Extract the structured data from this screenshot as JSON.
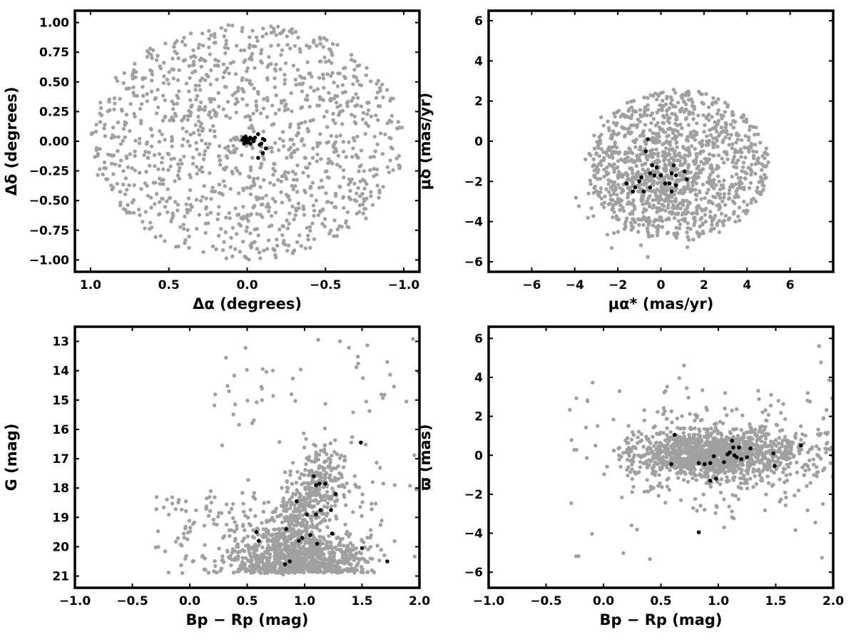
{
  "chart_data": [
    {
      "id": "sky",
      "type": "scatter",
      "xlabel": "Δα (degrees)",
      "ylabel": "Δδ (degrees)",
      "xlim": [
        1.1,
        -1.1
      ],
      "ylim": [
        -1.1,
        1.1
      ],
      "x_reversed": true,
      "xticks": [
        1.0,
        0.5,
        0.0,
        -0.5,
        -1.0
      ],
      "xtick_labels": [
        "1.0",
        "0.5",
        "0.0",
        "−0.5",
        "−1.0"
      ],
      "yticks": [
        -1.0,
        -0.75,
        -0.5,
        -0.25,
        0.0,
        0.25,
        0.5,
        0.75,
        1.0
      ],
      "ytick_labels": [
        "−1.00",
        "−0.75",
        "−0.50",
        "−0.25",
        "0.00",
        "0.25",
        "0.50",
        "0.75",
        "1.00"
      ],
      "background": {
        "color": "#a0a0a0",
        "count": 1200,
        "seed": 11,
        "distribution": "uniform-disk",
        "radius": 1.0,
        "center": [
          0,
          0
        ]
      },
      "members": {
        "color": "#000000",
        "points": [
          [
            0.02,
            0.03
          ],
          [
            0.0,
            0.02
          ],
          [
            -0.02,
            0.03
          ],
          [
            0.01,
            0.0
          ],
          [
            -0.01,
            0.01
          ],
          [
            0.03,
            0.01
          ],
          [
            0.0,
            -0.01
          ],
          [
            -0.03,
            0.02
          ],
          [
            0.02,
            -0.02
          ],
          [
            -0.04,
            0.0
          ],
          [
            0.01,
            0.04
          ],
          [
            -0.02,
            -0.02
          ],
          [
            -0.05,
            0.03
          ],
          [
            -0.07,
            0.06
          ],
          [
            -0.1,
            0.02
          ],
          [
            -0.09,
            -0.02
          ],
          [
            -0.11,
            0.01
          ],
          [
            -0.08,
            -0.03
          ],
          [
            -0.12,
            -0.06
          ],
          [
            -0.07,
            -0.14
          ],
          [
            -0.1,
            -0.1
          ]
        ]
      }
    },
    {
      "id": "pm",
      "type": "scatter",
      "xlabel": "μα* (mas/yr)",
      "ylabel": "μδ (mas/yr)",
      "xlim": [
        -8,
        8
      ],
      "ylim": [
        -6.5,
        6.5
      ],
      "xticks": [
        -6,
        -4,
        -2,
        0,
        2,
        4,
        6
      ],
      "xtick_labels": [
        "−6",
        "−4",
        "−2",
        "0",
        "2",
        "4",
        "6"
      ],
      "yticks": [
        -6,
        -4,
        -2,
        0,
        2,
        4,
        6
      ],
      "ytick_labels": [
        "−6",
        "−4",
        "−2",
        "0",
        "2",
        "4",
        "6"
      ],
      "background": {
        "color": "#a0a0a0",
        "count": 1300,
        "seed": 23,
        "distribution": "ellipse-concentrated",
        "center": [
          0.8,
          -1.2
        ],
        "radius": [
          4.2,
          3.8
        ],
        "core_center": [
          -0.3,
          -1.8
        ],
        "core_sigma": [
          1.3,
          1.3
        ],
        "core_fraction": 0.3
      },
      "members": {
        "color": "#000000",
        "points": [
          [
            -0.6,
            0.1
          ],
          [
            -0.7,
            -0.5
          ],
          [
            -0.4,
            -1.2
          ],
          [
            -0.2,
            -1.3
          ],
          [
            -0.5,
            -1.6
          ],
          [
            -0.3,
            -1.7
          ],
          [
            0.0,
            -1.7
          ],
          [
            0.5,
            -1.6
          ],
          [
            0.7,
            -1.7
          ],
          [
            0.6,
            -1.2
          ],
          [
            1.1,
            -1.5
          ],
          [
            1.2,
            -1.9
          ],
          [
            -0.9,
            -1.8
          ],
          [
            -1.0,
            -2.0
          ],
          [
            -1.6,
            -2.1
          ],
          [
            -1.2,
            -2.3
          ],
          [
            -1.3,
            -2.5
          ],
          [
            -0.8,
            -2.5
          ],
          [
            -0.5,
            -2.3
          ],
          [
            0.2,
            -2.1
          ],
          [
            0.4,
            -2.1
          ],
          [
            0.5,
            -2.5
          ],
          [
            0.7,
            -2.2
          ]
        ]
      }
    },
    {
      "id": "cmd",
      "type": "scatter",
      "xlabel": "Bp − Rp (mag)",
      "ylabel": "G (mag)",
      "xlim": [
        -1.0,
        2.0
      ],
      "ylim": [
        21.4,
        12.5
      ],
      "y_reversed": true,
      "xticks": [
        -1.0,
        -0.5,
        0.0,
        0.5,
        1.0,
        1.5,
        2.0
      ],
      "xtick_labels": [
        "−1.0",
        "−0.5",
        "0.0",
        "0.5",
        "1.0",
        "1.5",
        "2.0"
      ],
      "yticks": [
        13,
        14,
        15,
        16,
        17,
        18,
        19,
        20,
        21
      ],
      "ytick_labels": [
        "13",
        "14",
        "15",
        "16",
        "17",
        "18",
        "19",
        "20",
        "21"
      ],
      "background": {
        "color": "#a0a0a0",
        "count": 1500,
        "seed": 37,
        "distribution": "cmd"
      },
      "members": {
        "color": "#000000",
        "points": [
          [
            0.83,
            20.6
          ],
          [
            0.87,
            20.5
          ],
          [
            0.6,
            19.8
          ],
          [
            0.58,
            19.5
          ],
          [
            0.84,
            19.4
          ],
          [
            0.95,
            19.8
          ],
          [
            0.98,
            19.7
          ],
          [
            1.05,
            19.6
          ],
          [
            1.11,
            19.9
          ],
          [
            1.24,
            19.55
          ],
          [
            1.5,
            20.05
          ],
          [
            1.02,
            18.9
          ],
          [
            1.1,
            18.9
          ],
          [
            1.14,
            18.75
          ],
          [
            1.23,
            18.75
          ],
          [
            0.93,
            18.45
          ],
          [
            1.27,
            18.2
          ],
          [
            1.1,
            17.9
          ],
          [
            1.13,
            17.85
          ],
          [
            1.18,
            17.85
          ],
          [
            1.08,
            17.6
          ],
          [
            1.49,
            16.45
          ],
          [
            1.72,
            20.5
          ]
        ]
      }
    },
    {
      "id": "parallax",
      "type": "scatter",
      "xlabel": "Bp − Rp (mag)",
      "ylabel": "ϖ (mas)",
      "xlim": [
        -1.0,
        2.0
      ],
      "ylim": [
        -6.8,
        6.6
      ],
      "xticks": [
        -1.0,
        -0.5,
        0.0,
        0.5,
        1.0,
        1.5,
        2.0
      ],
      "xtick_labels": [
        "−1.0",
        "−0.5",
        "0.0",
        "0.5",
        "1.0",
        "1.5",
        "2.0"
      ],
      "yticks": [
        -6,
        -4,
        -2,
        0,
        2,
        4,
        6
      ],
      "ytick_labels": [
        "−6",
        "−4",
        "−2",
        "0",
        "2",
        "4",
        "6"
      ],
      "background": {
        "color": "#a0a0a0",
        "count": 1500,
        "seed": 53,
        "distribution": "parallax"
      },
      "members": {
        "color": "#000000",
        "points": [
          [
            0.62,
            1.05
          ],
          [
            0.59,
            -0.45
          ],
          [
            0.83,
            -0.4
          ],
          [
            0.88,
            -0.45
          ],
          [
            0.93,
            -0.4
          ],
          [
            0.96,
            -0.05
          ],
          [
            0.93,
            -1.3
          ],
          [
            0.98,
            -1.2
          ],
          [
            1.05,
            -0.35
          ],
          [
            1.08,
            0.05
          ],
          [
            1.1,
            0.15
          ],
          [
            1.12,
            0.75
          ],
          [
            1.13,
            0.4
          ],
          [
            1.14,
            0.0
          ],
          [
            1.16,
            -0.1
          ],
          [
            1.18,
            0.4
          ],
          [
            1.2,
            -0.2
          ],
          [
            1.25,
            -0.1
          ],
          [
            1.28,
            0.35
          ],
          [
            1.48,
            0.1
          ],
          [
            1.49,
            -0.55
          ],
          [
            1.72,
            0.5
          ],
          [
            0.83,
            -3.95
          ]
        ]
      }
    }
  ]
}
